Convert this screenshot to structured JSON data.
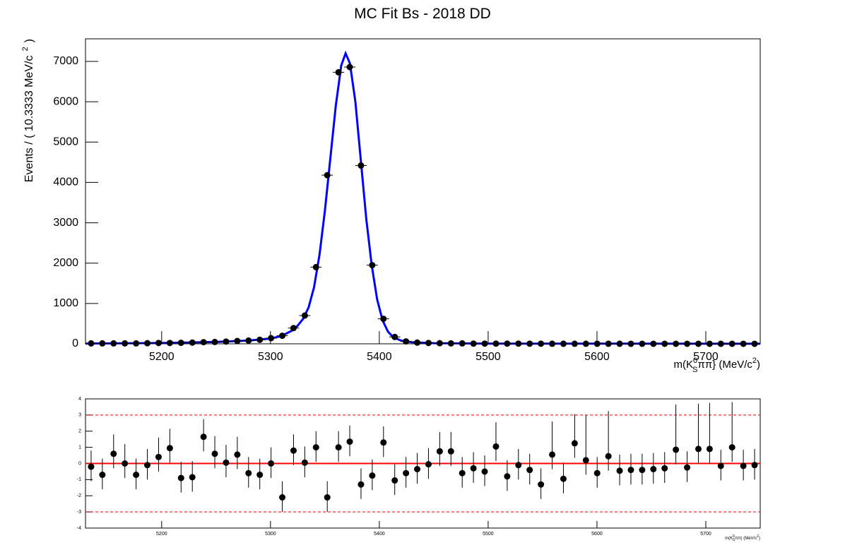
{
  "chart_data": [
    {
      "type": "fit",
      "title": "MC Fit Bs - 2018 DD",
      "ylabel": [
        "Events / ( 10.3333 MeV/c",
        "2",
        ")"
      ],
      "xlabel": [
        "m(K",
        "0",
        "S",
        "ππ} (MeV/c",
        "2",
        ")"
      ],
      "x": [
        5135.17,
        5145.5,
        5155.83,
        5166.17,
        5176.5,
        5186.83,
        5197.17,
        5207.5,
        5217.83,
        5228.17,
        5238.5,
        5248.83,
        5259.17,
        5269.5,
        5279.83,
        5290.17,
        5300.5,
        5310.83,
        5321.17,
        5331.5,
        5341.83,
        5352.17,
        5362.5,
        5372.83,
        5383.17,
        5393.5,
        5403.83,
        5414.17,
        5424.5,
        5434.83,
        5445.17,
        5455.5,
        5465.83,
        5476.17,
        5486.5,
        5496.83,
        5507.17,
        5517.5,
        5527.83,
        5538.17,
        5548.5,
        5558.83,
        5569.17,
        5579.5,
        5589.83,
        5600.17,
        5610.5,
        5620.83,
        5631.17,
        5641.5,
        5651.83,
        5662.17,
        5672.5,
        5682.83,
        5693.17,
        5703.5,
        5713.83,
        5724.17,
        5734.5,
        5744.83
      ],
      "values": [
        10,
        10,
        10,
        10,
        10,
        15,
        20,
        20,
        25,
        30,
        40,
        45,
        55,
        70,
        80,
        100,
        140,
        200,
        390,
        700,
        1900,
        4180,
        6730,
        6860,
        4420,
        1950,
        620,
        170,
        60,
        30,
        20,
        15,
        10,
        10,
        5,
        5,
        5,
        5,
        5,
        3,
        3,
        2,
        2,
        2,
        2,
        2,
        2,
        2,
        1,
        1,
        1,
        1,
        1,
        1,
        1,
        1,
        1,
        1,
        1,
        1
      ],
      "color": "#000000",
      "curve": {
        "color": "#0000ff",
        "x": [
          5130,
          5200,
          5250,
          5280,
          5300,
          5310,
          5320,
          5325,
          5330,
          5335,
          5340,
          5345,
          5350,
          5355,
          5360,
          5365,
          5369,
          5373,
          5378,
          5383,
          5388,
          5393,
          5398,
          5403,
          5408,
          5413,
          5420,
          5430,
          5450,
          5500,
          5750
        ],
        "values": [
          5,
          20,
          45,
          80,
          130,
          190,
          330,
          450,
          620,
          900,
          1400,
          2200,
          3300,
          4600,
          5900,
          6900,
          7200,
          6950,
          6000,
          4550,
          3100,
          1950,
          1100,
          580,
          300,
          160,
          80,
          40,
          15,
          5,
          2
        ]
      },
      "xlim": [
        5130,
        5750
      ],
      "xticks": [
        5200,
        5300,
        5400,
        5500,
        5600,
        5700
      ],
      "ylim": [
        0,
        7560
      ],
      "yticks": [
        0,
        1000,
        2000,
        3000,
        4000,
        5000,
        6000,
        7000
      ]
    },
    {
      "type": "pull",
      "xlabel": [
        "m(K",
        "0",
        "S",
        "ππ) (MeV/c",
        "2",
        ")"
      ],
      "x": [
        5135.17,
        5145.5,
        5155.83,
        5166.17,
        5176.5,
        5186.83,
        5197.17,
        5207.5,
        5217.83,
        5228.17,
        5238.5,
        5248.83,
        5259.17,
        5269.5,
        5279.83,
        5290.17,
        5300.5,
        5310.83,
        5321.17,
        5331.5,
        5341.83,
        5352.17,
        5362.5,
        5372.83,
        5383.17,
        5393.5,
        5403.83,
        5414.17,
        5424.5,
        5434.83,
        5445.17,
        5455.5,
        5465.83,
        5476.17,
        5486.5,
        5496.83,
        5507.17,
        5517.5,
        5527.83,
        5538.17,
        5548.5,
        5558.83,
        5569.17,
        5579.5,
        5589.83,
        5600.17,
        5610.5,
        5620.83,
        5631.17,
        5641.5,
        5651.83,
        5662.17,
        5672.5,
        5682.83,
        5693.17,
        5703.5,
        5713.83,
        5724.17,
        5734.5,
        5744.83
      ],
      "values": [
        -0.2,
        -0.7,
        0.6,
        0,
        -0.7,
        -0.1,
        0.4,
        0.95,
        -0.9,
        -0.85,
        1.65,
        0.6,
        0.05,
        0.55,
        -0.6,
        -0.7,
        0,
        -2.1,
        0.8,
        0.05,
        1.0,
        -2.1,
        1.0,
        1.35,
        -1.3,
        -0.75,
        1.3,
        -1.05,
        -0.6,
        -0.35,
        -0.05,
        0.75,
        0.75,
        -0.6,
        -0.3,
        -0.5,
        1.05,
        -0.8,
        -0.1,
        -0.4,
        -1.3,
        0.55,
        -0.95,
        1.25,
        0.2,
        -0.6,
        0.45,
        -0.45,
        -0.4,
        -0.4,
        -0.35,
        -0.3,
        0.85,
        -0.25,
        0.9,
        0.9,
        -0.15,
        1.0,
        -0.15,
        -0.1
      ],
      "errors_low": [
        0.9,
        0.9,
        0.9,
        0.9,
        0.9,
        0.9,
        0.9,
        0.9,
        0.9,
        0.9,
        0.9,
        0.9,
        0.9,
        0.9,
        0.9,
        0.9,
        0.9,
        0.9,
        0.9,
        0.9,
        0.9,
        0.9,
        0.9,
        0.9,
        0.9,
        0.9,
        0.9,
        0.9,
        0.9,
        0.9,
        0.9,
        0.9,
        0.9,
        0.9,
        0.9,
        0.9,
        0.9,
        0.9,
        0.9,
        0.9,
        0.9,
        0.9,
        0.9,
        0.9,
        0.9,
        0.9,
        0.9,
        0.9,
        0.9,
        0.9,
        0.9,
        0.9,
        0.9,
        0.9,
        0.9,
        0.9,
        0.9,
        0.9,
        0.9,
        0.9
      ],
      "errors_high": [
        1,
        1,
        1.2,
        1.2,
        1,
        1,
        1.2,
        1.2,
        1,
        1,
        1.1,
        1.1,
        1.1,
        1.1,
        1,
        1,
        1,
        1,
        1,
        1,
        1,
        1,
        1,
        1,
        1,
        1,
        1,
        1,
        1,
        1,
        1,
        1.2,
        1.2,
        1,
        1,
        1,
        1.5,
        1,
        1,
        1,
        1,
        2.05,
        1,
        1.8,
        2.8,
        1,
        2.8,
        1,
        1,
        1,
        1,
        1,
        2.8,
        1,
        2.8,
        2.85,
        1,
        2.8,
        1,
        1
      ],
      "color": "#000000",
      "line_color": "#ff0000",
      "hline": 0,
      "hlines_dashed": [
        -3,
        3
      ],
      "xlim": [
        5130,
        5750
      ],
      "xticks": [
        5200,
        5300,
        5400,
        5500,
        5600,
        5700
      ],
      "ylim": [
        -4,
        4
      ],
      "yticks": [
        -4,
        -3,
        -2,
        -1,
        0,
        1,
        2,
        3,
        4
      ]
    }
  ]
}
